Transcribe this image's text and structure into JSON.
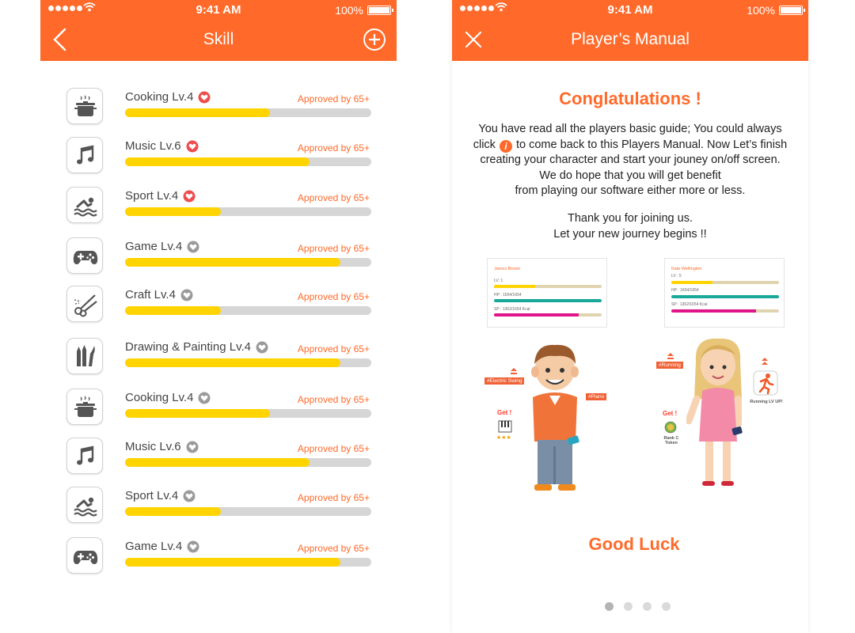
{
  "status": {
    "time": "9:41 AM",
    "battery": "100%"
  },
  "skill_screen": {
    "title": "Skill",
    "skills": [
      {
        "name": "Cooking Lv.4",
        "icon": "cooking-pot-icon",
        "liked": true,
        "approved": "Approved by 65+",
        "progress": 0.59
      },
      {
        "name": "Music Lv.6",
        "icon": "music-note-icon",
        "liked": true,
        "approved": "Approved by 65+",
        "progress": 0.75
      },
      {
        "name": "Sport Lv.4",
        "icon": "swimming-icon",
        "liked": true,
        "approved": "Approved by 65+",
        "progress": 0.39
      },
      {
        "name": "Game Lv.4",
        "icon": "gamepad-icon",
        "liked": false,
        "approved": "Approved by 65+",
        "progress": 0.875
      },
      {
        "name": "Craft Lv.4",
        "icon": "scissors-icon",
        "liked": false,
        "approved": "Approved by 65+",
        "progress": 0.39
      },
      {
        "name": "Drawing & Painting Lv.4",
        "icon": "pencils-icon",
        "liked": false,
        "approved": "Approved by 65+",
        "progress": 0.875
      },
      {
        "name": "Cooking Lv.4",
        "icon": "cooking-pot-icon",
        "liked": false,
        "approved": "Approved by 65+",
        "progress": 0.59
      },
      {
        "name": "Music Lv.6",
        "icon": "music-note-icon",
        "liked": false,
        "approved": "Approved by 65+",
        "progress": 0.75
      },
      {
        "name": "Sport Lv.4",
        "icon": "swimming-icon",
        "liked": false,
        "approved": "Approved by 65+",
        "progress": 0.39
      },
      {
        "name": "Game Lv.4",
        "icon": "gamepad-icon",
        "liked": false,
        "approved": "Approved by 65+",
        "progress": 0.875
      }
    ]
  },
  "manual_screen": {
    "title": "Player’s Manual",
    "heading": "Conglatulations !",
    "body_line1": "You have read all the players basic guide; You could always",
    "body_click": "click",
    "info_icon_label": "i",
    "body_line2_rest": "to come back to this Players Manual.  Now Let’s finish",
    "body_line3": "creating your character and start your jouney on/off screen.",
    "body_line4": "We do hope that you will get benefit",
    "body_line5": "from playing our software either more or less.",
    "thanks_line1": "Thank you for joining us.",
    "thanks_line2": "Let your new journey begins !!",
    "player_cards": [
      {
        "name": "James Brown",
        "lv": "LV :1",
        "hp": "HP : 1654/1654",
        "sp": "SP : 1362/1654 Kcal",
        "lv_progress": 0.38,
        "hp_progress": 1.0,
        "sp_progress": 0.79
      },
      {
        "name": "Kate Wellington",
        "lv": "LV : 5",
        "hp": "HP : 1654/1654",
        "sp": "SP : 1362/1654 Kcal",
        "lv_progress": 0.38,
        "hp_progress": 1.0,
        "sp_progress": 0.79
      }
    ],
    "tags": {
      "electric_swing": "#Electric Swing",
      "piano": "#Piano",
      "running": "#Running"
    },
    "get_label": "Get !",
    "rank_token": "Rank C Token",
    "running_level": "Running LV UP!",
    "stars": "★★★",
    "footer": "Good Luck",
    "page_dots": 4,
    "active_dot": 0
  },
  "colors": {
    "accent": "#ff6a2a",
    "progress": "#ffd400",
    "track": "#d6d6d6",
    "heart_active": "#ee4d4d",
    "heart_inactive": "#9a9a9a"
  }
}
